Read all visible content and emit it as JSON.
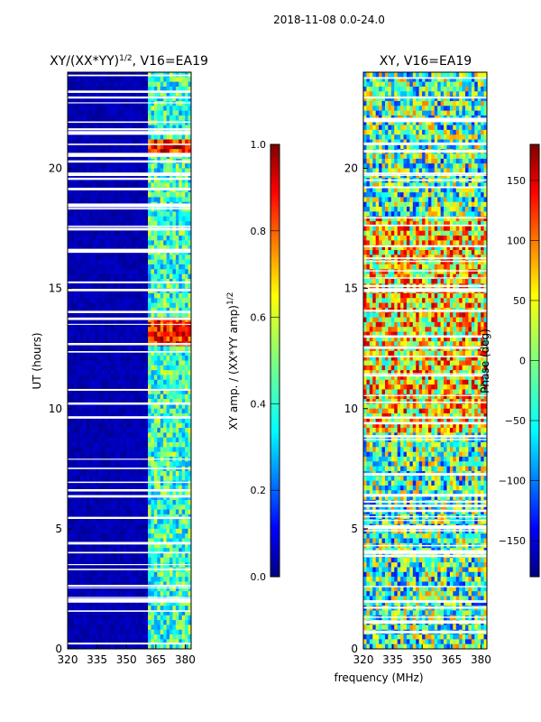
{
  "suptitle": "2018-11-08 0.0-24.0",
  "xlabel_shared": "frequency (MHz)",
  "chart_data": [
    {
      "type": "heatmap",
      "title": "XY/(XX*YY)",
      "title_exponent": "1/2",
      "title_suffix": ", V16=EA19",
      "xlabel": "",
      "ylabel": "UT (hours)",
      "xlim": [
        320,
        383
      ],
      "ylim": [
        0,
        24
      ],
      "xticks": [
        320,
        335,
        350,
        365,
        380
      ],
      "yticks": [
        0,
        5,
        10,
        15,
        20
      ],
      "colorbar": {
        "label": "XY amp. / (XX*YY amp)",
        "label_exponent": "1/2",
        "range": [
          0.0,
          1.0
        ],
        "ticks": [
          "0.0",
          "0.2",
          "0.4",
          "0.6",
          "0.8",
          "1.0"
        ],
        "colormap": "jet"
      },
      "notes": "Values near 0 below ~360 MHz; elevated amplitude (0.3-1.0) in 362-381 MHz band, peaks near 13 h and 21 h"
    },
    {
      "type": "heatmap",
      "title": "XY, V16=EA19",
      "xlabel": "",
      "ylabel": "",
      "xlim": [
        320,
        383
      ],
      "ylim": [
        0,
        24
      ],
      "xticks": [
        320,
        335,
        350,
        365,
        380
      ],
      "yticks": [
        0,
        5,
        10,
        15,
        20
      ],
      "colorbar": {
        "label": "Phase (deg)",
        "range": [
          -180,
          180
        ],
        "ticks": [
          "-150",
          "-100",
          "-50",
          "0",
          "50",
          "100",
          "150"
        ],
        "colormap": "jet"
      },
      "notes": "XY phase varies across full -180..180 range; warmer (positive) phases between 9-18 h"
    }
  ],
  "colors": {
    "jet_stops": [
      "#00007f",
      "#0000ff",
      "#007fff",
      "#00ffff",
      "#7fff7f",
      "#ffff00",
      "#ff7f00",
      "#ff0000",
      "#7f0000"
    ]
  }
}
